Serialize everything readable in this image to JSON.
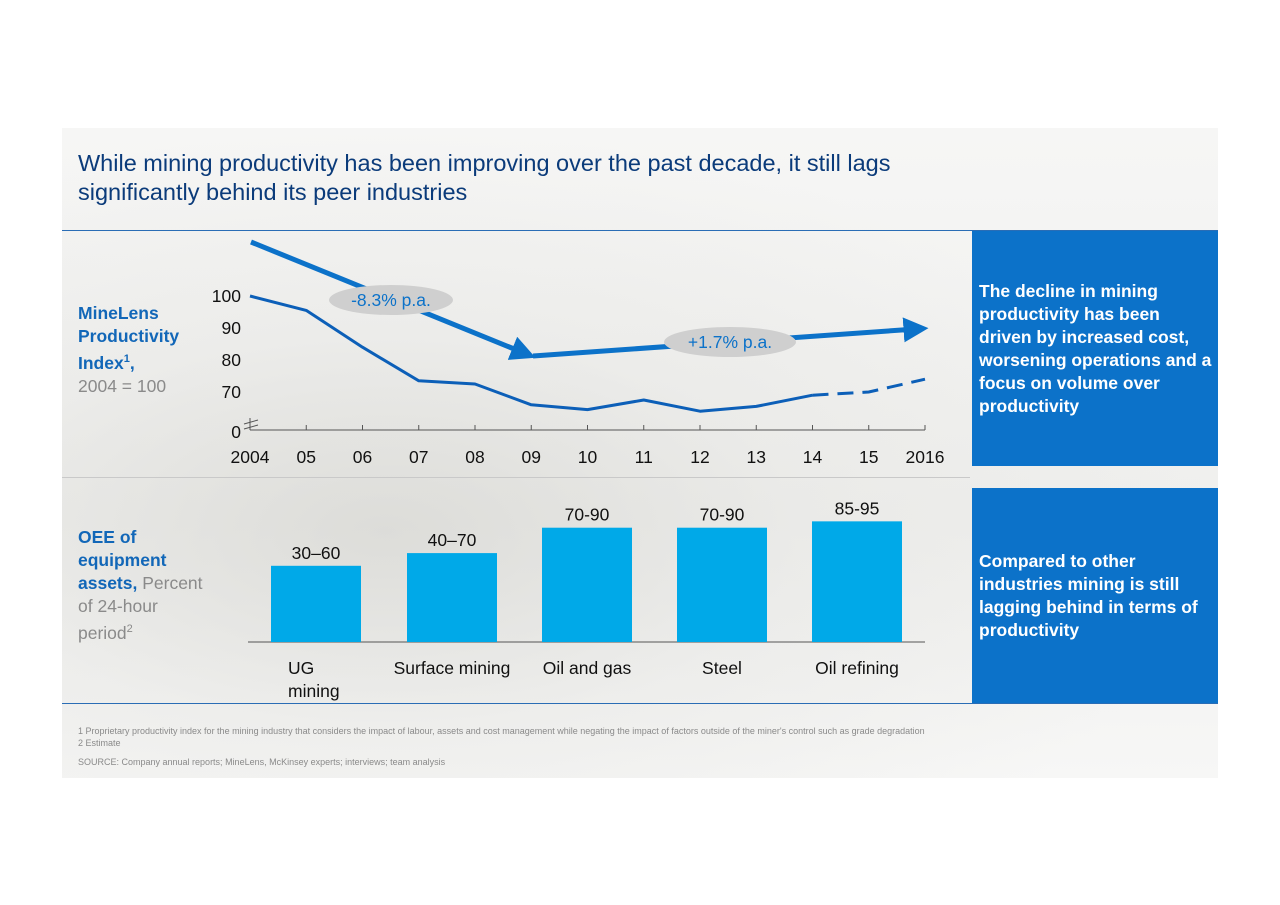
{
  "title": "While mining productivity has been improving over the past decade, it still lags significantly behind its peer industries",
  "top_panel": {
    "label_line1": "MineLens",
    "label_line2": "Productivity",
    "label_line3": "Index",
    "label_sup": "1",
    "label_comma": ",",
    "label_grey": "2004 = 100",
    "callout": "The decline in mining productivity has been driven by increased cost, worsening operations and a focus on volume over productivity"
  },
  "bottom_panel": {
    "label_line1": "OEE of",
    "label_line2": "equipment",
    "label_line3": "assets,",
    "label_grey1": " Percent",
    "label_grey2": "of 24-hour",
    "label_grey3": "period",
    "label_sup": "2",
    "callout": "Compared to other industries mining is still lagging behind in terms of productivity"
  },
  "chart_data": [
    {
      "type": "line",
      "x": [
        "2004",
        "05",
        "06",
        "07",
        "08",
        "09",
        "10",
        "11",
        "12",
        "13",
        "14",
        "15",
        "2016"
      ],
      "y_ticks": [
        "0",
        "70",
        "80",
        "90",
        "100"
      ],
      "axis_break": true,
      "series": [
        {
          "values": [
            100,
            95.5,
            84,
            73.5,
            72.5,
            66,
            64.5,
            67.5,
            64,
            65.5,
            69,
            70,
            74
          ],
          "estimated_from": "14",
          "color": "#0c5fb8"
        }
      ],
      "trends": [
        {
          "label": "-8.3% p.a.",
          "from": "2004",
          "to": "09"
        },
        {
          "label": "+1.7% p.a.",
          "from": "09",
          "to": "2016"
        }
      ]
    },
    {
      "type": "bar",
      "categories": [
        "UG mining",
        "Surface mining",
        "Oil and gas",
        "Steel",
        "Oil refining"
      ],
      "ranges": [
        [
          30,
          60
        ],
        [
          40,
          70
        ],
        [
          70,
          90
        ],
        [
          70,
          90
        ],
        [
          85,
          95
        ]
      ],
      "data_labels": [
        "30–60",
        "40–70",
        "70-90",
        "70-90",
        "85-95"
      ],
      "color": "#00a9e8"
    }
  ],
  "footnotes": {
    "note1": "1 Proprietary productivity index for the mining industry that considers the impact of labour, assets and cost management while negating the impact of factors outside of the miner's control such as grade degradation",
    "note2": "2 Estimate",
    "source": "SOURCE: Company annual reports; MineLens, McKinsey experts; interviews; team analysis"
  }
}
